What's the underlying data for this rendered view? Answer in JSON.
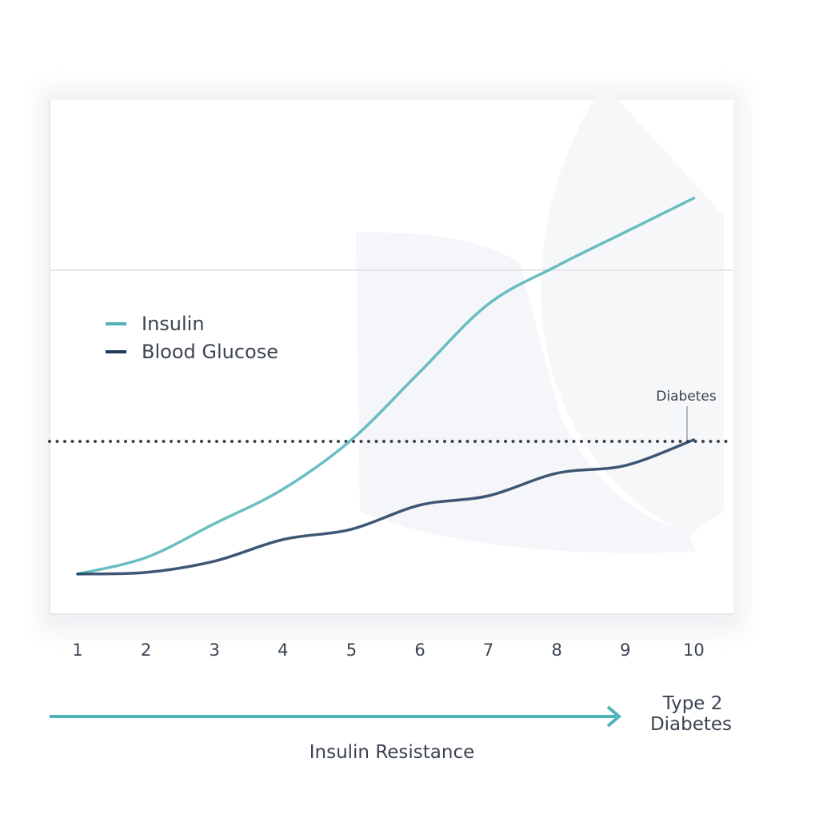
{
  "chart_data": {
    "type": "line",
    "categories": [
      "1",
      "2",
      "3",
      "4",
      "5",
      "6",
      "7",
      "8",
      "9",
      "10"
    ],
    "series": [
      {
        "name": "Insulin",
        "color": "#4fb3b8",
        "values": [
          7.8,
          11.0,
          17.6,
          24.3,
          33.9,
          47.1,
          60.3,
          67.7,
          74.3,
          80.9
        ]
      },
      {
        "name": "Blood Glucose",
        "color": "#1d3a5c",
        "values": [
          7.8,
          8.1,
          10.3,
          14.5,
          16.5,
          21.2,
          23.0,
          27.4,
          28.9,
          33.9
        ]
      }
    ],
    "ylim": [
      0,
      100
    ],
    "reference_lines": [
      {
        "value": 66.9,
        "style": "solid"
      },
      {
        "value": 33.6,
        "style": "dotted",
        "label": "Diabetes"
      }
    ],
    "x_label": "Insulin Resistance",
    "end_label": [
      "Type 2",
      "Diabetes"
    ],
    "arrow_color": "#4fb3b8",
    "legend": "left"
  }
}
